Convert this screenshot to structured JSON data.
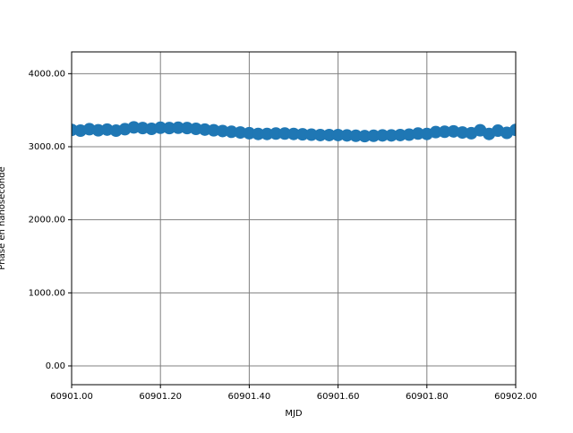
{
  "chart_data": {
    "type": "scatter",
    "xlabel": "MJD",
    "ylabel": "Phase en nanoseconde",
    "color": "#1f77b4",
    "grid": true,
    "xlim": [
      60901.0,
      60902.0
    ],
    "xticks": [
      {
        "value": 60901.0,
        "label": "60901.00"
      },
      {
        "value": 60901.2,
        "label": "60901.20"
      },
      {
        "value": 60901.4,
        "label": "60901.40"
      },
      {
        "value": 60901.6,
        "label": "60901.60"
      },
      {
        "value": 60901.8,
        "label": "60901.80"
      },
      {
        "value": 60902.0,
        "label": "60902.00"
      }
    ],
    "ylim": [
      -257,
      4298
    ],
    "yticks": [
      {
        "value": 0,
        "label": "0.00"
      },
      {
        "value": 1000,
        "label": "1000.00"
      },
      {
        "value": 2000,
        "label": "2000.00"
      },
      {
        "value": 3000,
        "label": "3000.00"
      },
      {
        "value": 4000,
        "label": "4000.00"
      }
    ],
    "x": [
      60901.0,
      60901.02,
      60901.04,
      60901.06,
      60901.08,
      60901.1,
      60901.12,
      60901.14,
      60901.16,
      60901.18,
      60901.2,
      60901.22,
      60901.24,
      60901.26,
      60901.28,
      60901.3,
      60901.32,
      60901.34,
      60901.36,
      60901.38,
      60901.4,
      60901.42,
      60901.44,
      60901.46,
      60901.48,
      60901.5,
      60901.52,
      60901.54,
      60901.56,
      60901.58,
      60901.6,
      60901.62,
      60901.64,
      60901.66,
      60901.68,
      60901.7,
      60901.72,
      60901.74,
      60901.76,
      60901.78,
      60901.8,
      60901.82,
      60901.84,
      60901.86,
      60901.88,
      60901.9,
      60901.92,
      60901.94,
      60901.96,
      60901.98,
      60902.0
    ],
    "values": [
      3230,
      3220,
      3240,
      3225,
      3235,
      3220,
      3240,
      3265,
      3255,
      3245,
      3260,
      3255,
      3260,
      3255,
      3245,
      3235,
      3225,
      3215,
      3205,
      3195,
      3185,
      3175,
      3175,
      3180,
      3180,
      3175,
      3170,
      3165,
      3160,
      3160,
      3160,
      3155,
      3150,
      3145,
      3150,
      3155,
      3155,
      3160,
      3165,
      3180,
      3175,
      3200,
      3205,
      3210,
      3195,
      3185,
      3225,
      3175,
      3220,
      3190,
      3230
    ]
  }
}
